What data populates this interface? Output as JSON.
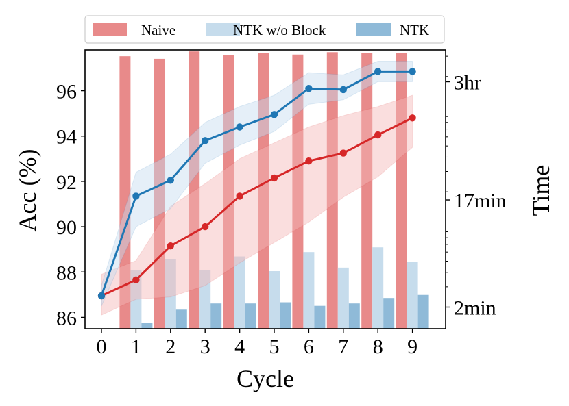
{
  "chart_data": {
    "type": "bar+line",
    "xlabel": "Cycle",
    "ylabel_left": "Acc (%)",
    "ylabel_right": "Time",
    "x": [
      0,
      1,
      2,
      3,
      4,
      5,
      6,
      7,
      8,
      9
    ],
    "x_ticks": [
      "0",
      "1",
      "2",
      "3",
      "4",
      "5",
      "6",
      "7",
      "8",
      "9"
    ],
    "ylim_left": [
      85.5,
      97.8
    ],
    "y_ticks_left": [
      86,
      88,
      90,
      92,
      94,
      96
    ],
    "y_ticks_left_labels": [
      "86",
      "88",
      "90",
      "92",
      "94",
      "96"
    ],
    "y_right_scale": "log",
    "ylim_right_min": [
      1.3,
      340
    ],
    "y_ticks_right_min": [
      2,
      17,
      180
    ],
    "y_ticks_right_labels": [
      "2min",
      "17min",
      "3hr"
    ],
    "legend": {
      "placement": "top-outside",
      "entries": [
        "Naive",
        "NTK w/o Block",
        "NTK"
      ]
    },
    "bars": [
      {
        "name": "Naive",
        "color": "#e88a8a",
        "cycles": [
          1,
          2,
          3,
          4,
          5,
          6,
          7,
          8,
          9
        ],
        "time_min": [
          300,
          285,
          330,
          305,
          318,
          310,
          325,
          320,
          320
        ]
      },
      {
        "name": "NTK w/o Block",
        "color": "#c6dcec",
        "cycles": [
          1,
          2,
          3,
          4,
          5,
          6,
          7,
          8,
          9
        ],
        "time_min": [
          4.2,
          5.2,
          4.2,
          5.5,
          4.1,
          6.0,
          4.4,
          6.6,
          4.9
        ]
      },
      {
        "name": "NTK",
        "color": "#8fbad8",
        "cycles": [
          1,
          2,
          3,
          4,
          5,
          6,
          7,
          8,
          9
        ],
        "time_min": [
          1.45,
          1.9,
          2.15,
          2.15,
          2.2,
          2.05,
          2.15,
          2.4,
          2.55
        ]
      }
    ],
    "lines": [
      {
        "color": "#d62728",
        "band_color": "#f4b6b6",
        "values": [
          86.95,
          87.65,
          89.15,
          90.0,
          91.35,
          92.15,
          92.9,
          93.25,
          94.05,
          94.8
        ],
        "lower": [
          86.1,
          86.8,
          86.9,
          87.4,
          88.4,
          89.3,
          90.2,
          91.3,
          92.2,
          93.5
        ],
        "upper": [
          87.9,
          88.5,
          90.9,
          91.9,
          93.0,
          93.7,
          94.4,
          94.9,
          95.3,
          95.8
        ]
      },
      {
        "color": "#1f77b4",
        "band_color": "#c6dcf0",
        "values": [
          86.95,
          91.35,
          92.05,
          93.8,
          94.4,
          94.95,
          96.1,
          96.05,
          96.85,
          96.85
        ],
        "lower": [
          86.5,
          90.0,
          90.8,
          92.8,
          93.6,
          94.2,
          95.4,
          95.6,
          96.4,
          96.4
        ],
        "upper": [
          87.4,
          92.4,
          93.2,
          94.6,
          95.3,
          95.8,
          96.8,
          96.7,
          97.3,
          97.3
        ]
      }
    ]
  }
}
